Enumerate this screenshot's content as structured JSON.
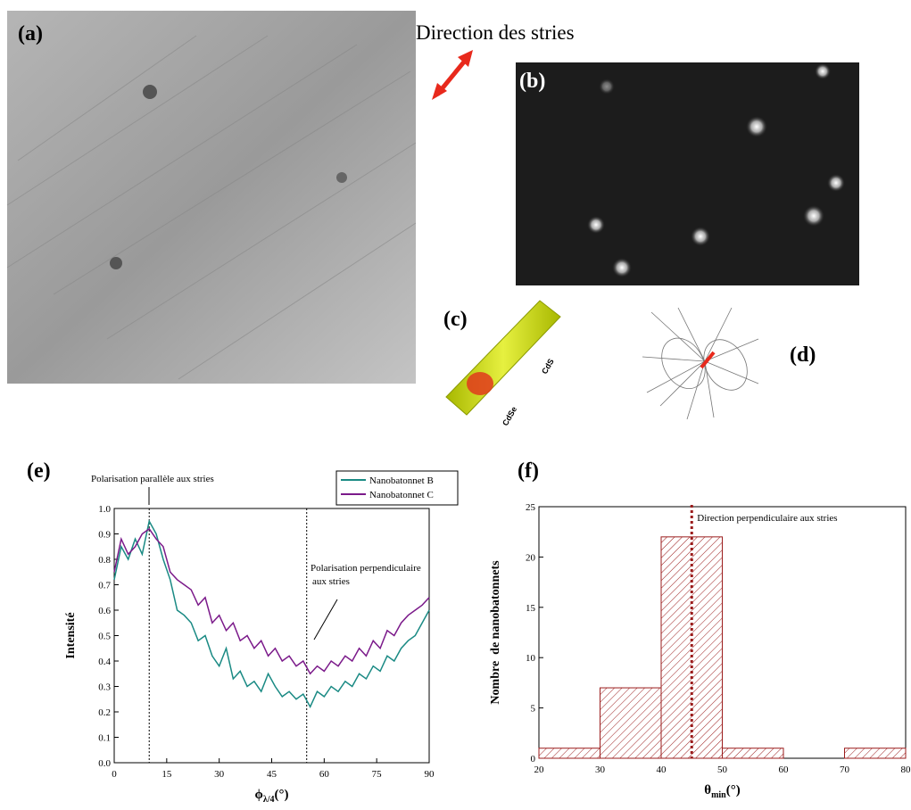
{
  "panels": {
    "a": "(a)",
    "b": "(b)",
    "c": "(c)",
    "d": "(d)",
    "direction": "Direction des stries",
    "cds": "CdS",
    "cdse": "CdSe"
  },
  "chart_data": [
    {
      "type": "line",
      "panel": "(e)",
      "x": [
        0,
        2,
        4,
        6,
        8,
        10,
        12,
        14,
        16,
        18,
        20,
        22,
        24,
        26,
        28,
        30,
        32,
        34,
        36,
        38,
        40,
        42,
        44,
        46,
        48,
        50,
        52,
        54,
        56,
        58,
        60,
        62,
        64,
        66,
        68,
        70,
        72,
        74,
        76,
        78,
        80,
        82,
        84,
        86,
        88,
        90
      ],
      "series": [
        {
          "name": "Nanobatonnet B",
          "color": "#1a8a84",
          "values": [
            0.72,
            0.85,
            0.8,
            0.88,
            0.82,
            0.95,
            0.9,
            0.8,
            0.72,
            0.6,
            0.58,
            0.55,
            0.48,
            0.5,
            0.42,
            0.38,
            0.45,
            0.33,
            0.36,
            0.3,
            0.32,
            0.28,
            0.35,
            0.3,
            0.26,
            0.28,
            0.25,
            0.27,
            0.22,
            0.28,
            0.26,
            0.3,
            0.28,
            0.32,
            0.3,
            0.35,
            0.33,
            0.38,
            0.36,
            0.42,
            0.4,
            0.45,
            0.48,
            0.5,
            0.55,
            0.6
          ]
        },
        {
          "name": "Nanobatonnet C",
          "color": "#7b1a8a",
          "values": [
            0.75,
            0.88,
            0.82,
            0.85,
            0.9,
            0.92,
            0.88,
            0.85,
            0.75,
            0.72,
            0.7,
            0.68,
            0.62,
            0.65,
            0.55,
            0.58,
            0.52,
            0.55,
            0.48,
            0.5,
            0.45,
            0.48,
            0.42,
            0.45,
            0.4,
            0.42,
            0.38,
            0.4,
            0.35,
            0.38,
            0.36,
            0.4,
            0.38,
            0.42,
            0.4,
            0.45,
            0.42,
            0.48,
            0.45,
            0.52,
            0.5,
            0.55,
            0.58,
            0.6,
            0.62,
            0.65
          ]
        }
      ],
      "xlim": [
        0,
        90
      ],
      "xticks": [
        0,
        15,
        30,
        45,
        60,
        75,
        90
      ],
      "ylim": [
        0,
        1
      ],
      "yticks": [
        {
          "value": 0,
          "label": "0.0"
        },
        0.1,
        0.2,
        0.3,
        0.4,
        0.5,
        0.6,
        0.7,
        0.8,
        0.9,
        {
          "value": 1,
          "label": "1.0"
        }
      ],
      "xlabel": [
        "ϕ",
        "λ/4",
        "(°)"
      ],
      "ylabel": "Intensité",
      "vlines": [
        10,
        55
      ],
      "annotations": [
        "Polarisation parallèle aux stries",
        "Polarisation perpendiculaire",
        "aux stries"
      ]
    },
    {
      "type": "histogram",
      "panel": "(f)",
      "bins": [
        20,
        30,
        40,
        50,
        60,
        70,
        80
      ],
      "values": [
        1,
        7,
        22,
        1,
        0,
        1
      ],
      "color": "#9b1c1c",
      "xlim": [
        20,
        80
      ],
      "xticks": [
        20,
        30,
        40,
        50,
        60,
        70,
        80
      ],
      "ylim": [
        0,
        25
      ],
      "yticks": [
        0,
        5,
        10,
        15,
        20,
        25
      ],
      "xlabel": [
        "θ",
        "min",
        "(°)"
      ],
      "ylabel": "Nombre  de nanobatonnets",
      "vlines": [
        45
      ],
      "annotations": [
        "Direction perpendiculaire aux stries"
      ]
    }
  ]
}
